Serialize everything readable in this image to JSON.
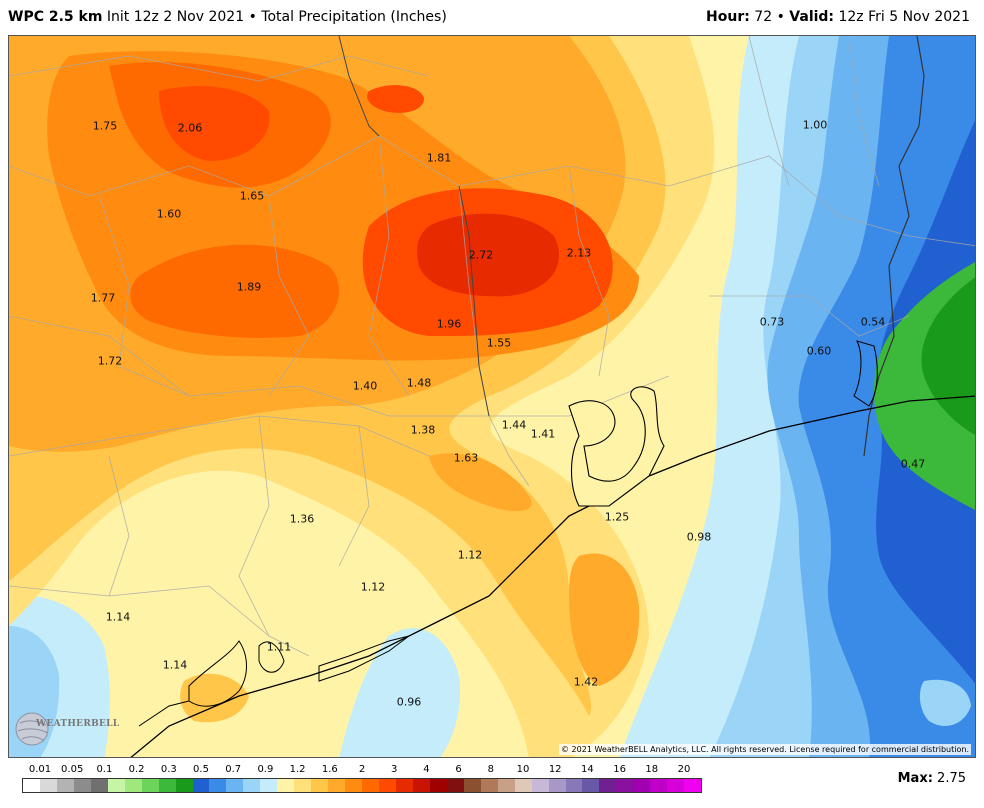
{
  "header": {
    "model": "WPC 2.5 km",
    "init": "Init 12z 2 Nov 2021",
    "separator": "•",
    "product": "Total Precipitation (Inches)",
    "hour_label": "Hour:",
    "hour_value": "72",
    "valid_label": "Valid:",
    "valid_value": "12z Fri 5 Nov 2021"
  },
  "map": {
    "values": [
      "1.75",
      "2.06",
      "1.81",
      "1.00",
      "1.65",
      "1.60",
      "2.72",
      "2.13",
      "1.77",
      "1.89",
      "0.73",
      "0.54",
      "1.96",
      "1.55",
      "0.60",
      "1.72",
      "1.40",
      "1.48",
      "1.38",
      "1.44",
      "1.41",
      "1.63",
      "0.47",
      "1.36",
      "1.25",
      "0.98",
      "1.12",
      "1.12",
      "1.14",
      "1.11",
      "1.14",
      "1.42",
      "0.96"
    ],
    "copyright": "© 2021 WeatherBELL Analytics, LLC. All rights reserved. License required for commercial distribution.",
    "logo_text": "WEATHERBELL"
  },
  "legend": {
    "labels": [
      "0.01",
      "0.05",
      "0.1",
      "0.2",
      "0.3",
      "0.5",
      "0.7",
      "0.9",
      "1.2",
      "1.6",
      "2",
      "3",
      "4",
      "6",
      "8",
      "10",
      "12",
      "14",
      "16",
      "18",
      "20"
    ],
    "colors": [
      "#ffffff",
      "#d9d9d9",
      "#b3b3b3",
      "#8c8c8c",
      "#707070",
      "#c6f5a6",
      "#9ee87e",
      "#6cd45a",
      "#3cb83a",
      "#1a9a1a",
      "#2060d0",
      "#3a8ae8",
      "#6ab4f2",
      "#9ad4f6",
      "#c4ecfa",
      "#fff3a8",
      "#ffe07a",
      "#ffc64a",
      "#ffaa2a",
      "#ff8c10",
      "#ff6a00",
      "#ff4a00",
      "#e82a00",
      "#c81400",
      "#a00000",
      "#801010",
      "#8a5030",
      "#b07a5a",
      "#c8a088",
      "#e0c8b8",
      "#c8b8d8",
      "#a898c8",
      "#8878b8",
      "#6858a8",
      "#702090",
      "#8a10a0",
      "#a000b0",
      "#c000c8",
      "#d800d8",
      "#f000f0"
    ],
    "max_label": "Max:",
    "max_value": "2.75"
  }
}
